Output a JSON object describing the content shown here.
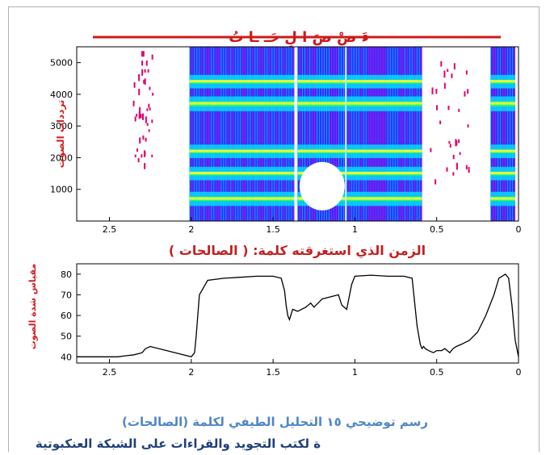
{
  "top_chart": {
    "phonemes": "ءَ   صْ  صَ   ا   لِ   حَـ   ـا   تُ",
    "y_label": "ترددات الصوت",
    "x_caption": "الزمن الذي استغرقته كلمة: ( الصالحات )",
    "colors": {
      "phonemes": "#cc1a1a",
      "ylabel": "#d42020",
      "caption": "#c41f1f"
    }
  },
  "bottom_chart": {
    "y_label": "مقياس شدة الصوت"
  },
  "caption": "رسم توضيحي ١٥ التحليل الطيفي لكلمة (الصالحات)",
  "footer": "ة لكتب التجويد والقراءات على الشبكة العنكبوتية",
  "chart_data": [
    {
      "type": "heatmap",
      "title": "",
      "xlabel": "",
      "ylabel": "ترددات الصوت",
      "x_reversed": true,
      "xlim": [
        2.7,
        0
      ],
      "ylim": [
        0,
        5500
      ],
      "x_ticks": [
        2.5,
        2,
        1.5,
        1,
        0.5,
        0
      ],
      "x_tick_labels": [
        "2.5",
        "2",
        "1.5",
        "1",
        "0.5",
        "0"
      ],
      "y_ticks": [
        1000,
        2000,
        3000,
        4000,
        5000
      ],
      "y_tick_labels": [
        "1000",
        "2000",
        "3000",
        "4000",
        "5000"
      ]
    },
    {
      "type": "line",
      "title": "",
      "xlabel": "",
      "ylabel": "مقياس شدة الصوت",
      "x_reversed": true,
      "xlim": [
        2.7,
        0
      ],
      "ylim": [
        37,
        85
      ],
      "x_ticks": [
        2.5,
        2,
        1.5,
        1,
        0.5,
        0
      ],
      "x_tick_labels": [
        "2.5",
        "2",
        "1.5",
        "1",
        "0.5",
        "0"
      ],
      "y_ticks": [
        40,
        50,
        60,
        70,
        80
      ],
      "y_tick_labels": [
        "40",
        "50",
        "60",
        "70",
        "80"
      ],
      "series": [
        {
          "x": [
            2.7,
            2.45,
            2.4,
            2.35,
            2.3,
            2.28,
            2.25,
            2.0,
            1.98,
            1.97,
            1.95,
            1.9,
            1.8,
            1.7,
            1.6,
            1.5,
            1.45,
            1.43,
            1.42,
            1.41,
            1.4,
            1.38,
            1.35,
            1.3,
            1.27,
            1.25,
            1.2,
            1.15,
            1.1,
            1.08,
            1.05,
            1.02,
            1.0,
            0.9,
            0.8,
            0.7,
            0.65,
            0.62,
            0.6,
            0.59,
            0.58,
            0.57,
            0.55,
            0.52,
            0.5,
            0.47,
            0.45,
            0.42,
            0.4,
            0.38,
            0.35,
            0.3,
            0.25,
            0.2,
            0.15,
            0.12,
            0.08,
            0.06,
            0.04,
            0.02,
            0.0
          ],
          "y": [
            40,
            40,
            40.5,
            41,
            42,
            44,
            45,
            40,
            42,
            50,
            70,
            77,
            78,
            78.5,
            79,
            79,
            78,
            72,
            65,
            60,
            58,
            63,
            62,
            64,
            66,
            64,
            68,
            69,
            70,
            65,
            63,
            75,
            79,
            79.5,
            79,
            79,
            78,
            55,
            46,
            44,
            45,
            44,
            43,
            42,
            43,
            43,
            44,
            42,
            44,
            45,
            46,
            48,
            52,
            60,
            70,
            78,
            80,
            78,
            65,
            48,
            40
          ]
        }
      ]
    }
  ]
}
